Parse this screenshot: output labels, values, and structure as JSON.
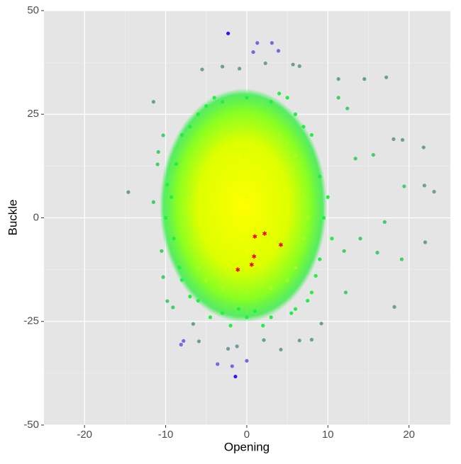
{
  "chart_data": {
    "type": "scatter",
    "xlabel": "Opening",
    "ylabel": "Buckle",
    "xlim": [
      -25,
      25.1
    ],
    "ylim": [
      -50,
      50
    ],
    "xticks": [
      -20,
      -10,
      0,
      10,
      20
    ],
    "yticks": [
      -50,
      -25,
      0,
      25,
      50
    ],
    "grid": true,
    "series": [
      {
        "color": "#3311ee",
        "marker": "circle",
        "x": [
          -2.3,
          -1.4
        ],
        "y": [
          44.5,
          -38.3
        ]
      },
      {
        "color": "#7a66dd",
        "marker": "circle",
        "x": [
          1.3,
          3.1,
          0.8,
          3.9,
          -1.8,
          -3.6,
          0,
          -8.1,
          -7.8
        ],
        "y": [
          42.2,
          42.2,
          40,
          40.3,
          -35.8,
          -35.3,
          -34.5,
          -30.6,
          -29.7
        ]
      },
      {
        "color": "#6a9e9a",
        "marker": "circle",
        "x": [
          -11.5,
          -14.6,
          17.2,
          14.5,
          11.3,
          18.2,
          22,
          23.1,
          21.8,
          19.2,
          18.1,
          21.9,
          -5.5,
          -3.0,
          -0.9,
          2.3,
          5.7,
          6.5,
          -5.9,
          -2.3,
          -1.2,
          2.1,
          4.2,
          6.5,
          8,
          -6.6,
          9.2
        ],
        "y": [
          28,
          6.2,
          33.9,
          33.5,
          33.5,
          -21.5,
          -5.9,
          6.3,
          17,
          18.8,
          19,
          7.8,
          35.8,
          36.5,
          36,
          37.3,
          37,
          36.6,
          -29.8,
          -31.6,
          -31.0,
          -29.5,
          -31.8,
          -29.6,
          -29.4,
          -25.6,
          -25.5
        ]
      },
      {
        "color": "#44cc66",
        "marker": "circle",
        "x": [
          12.2,
          12,
          16.1,
          17,
          19.1,
          19.4,
          15.6,
          13.4,
          12.4,
          11.3,
          -10.3,
          -10.9,
          -11,
          -11.5,
          -10.3,
          -9.8,
          -9.1,
          14,
          -10.5
        ],
        "y": [
          -18,
          -8,
          -8.4,
          -1,
          -10,
          7.6,
          15.2,
          14.3,
          26.4,
          29,
          19.9,
          15.9,
          12.9,
          3.8,
          -14.3,
          -20.1,
          -21.6,
          -5,
          -8
        ]
      },
      {
        "color": "#22ee44",
        "marker": "circle",
        "x": [
          -8,
          -6,
          -3,
          0,
          3,
          6,
          8,
          9,
          9.5,
          9,
          8,
          6,
          3,
          0,
          -3,
          -6,
          -8,
          -9,
          -9.3,
          -8.7,
          -5,
          5,
          7,
          -7,
          8.5,
          -8.3,
          2,
          -2,
          4,
          -4,
          10,
          -10,
          10.5,
          -9.8,
          7.5,
          -7,
          1,
          -1,
          5.5,
          -4.5
        ],
        "y": [
          20,
          25,
          28,
          29,
          28,
          25,
          20,
          10,
          0,
          -10,
          -18,
          -22,
          -24,
          -24,
          -23,
          -20,
          -15,
          -5,
          5,
          13,
          27,
          29,
          22,
          22,
          -14,
          -12,
          -26,
          -26,
          30,
          29,
          5,
          0,
          -5,
          8,
          -20,
          -19,
          -22.5,
          -22,
          -23,
          -24
        ]
      },
      {
        "color": "#aaff22",
        "marker": "circle",
        "x": [
          -6,
          -4,
          0,
          4,
          6,
          7,
          7,
          6,
          3,
          0,
          -3,
          -6,
          -7,
          -7,
          -5,
          5,
          7.5,
          -7.5,
          2,
          -2,
          5,
          -5
        ],
        "y": [
          15,
          20,
          22,
          20,
          15,
          5,
          -5,
          -12,
          -17,
          -18,
          -17,
          -12,
          -3,
          6,
          18,
          18,
          0,
          0,
          21,
          21,
          -15,
          -15
        ]
      },
      {
        "color": "#eeff00",
        "marker": "circle",
        "x": [
          -3,
          0,
          3,
          -2,
          2,
          -4,
          4,
          1,
          -1,
          0,
          3,
          -3
        ],
        "y": [
          10,
          5,
          8,
          0,
          -2,
          3,
          2,
          12,
          15,
          -8,
          -6,
          -6
        ]
      },
      {
        "color": "#ee0000",
        "marker": "star",
        "x": [
          1,
          2.2,
          4.2,
          0.9,
          0.6,
          -1.1
        ],
        "y": [
          -4.5,
          -3.8,
          -6.5,
          -9.3,
          -11.3,
          -12.5
        ]
      }
    ]
  }
}
